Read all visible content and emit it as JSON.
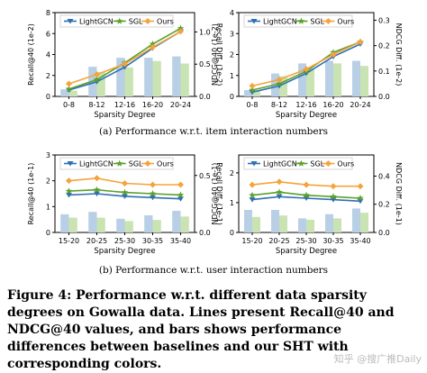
{
  "chart_data": [
    {
      "type": "bar",
      "categories": [
        "0-8",
        "8-12",
        "12-16",
        "16-20",
        "20-24"
      ],
      "xlabel": "Sparsity Degree",
      "ylabel": "Recall@40 (1e-2)",
      "y2label": "Recall Diff. (1e-2)",
      "ylim": [
        0,
        8
      ],
      "y2lim": [
        0,
        1.3
      ],
      "yticks": [
        "0",
        "2",
        "4",
        "6",
        "8"
      ],
      "y2ticks": [
        "0.0",
        "0.5",
        "1.0"
      ],
      "lines": [
        {
          "name": "LightGCN",
          "values": [
            0.6,
            1.4,
            2.8,
            4.6,
            6.2
          ]
        },
        {
          "name": "SGL",
          "values": [
            0.7,
            1.6,
            3.2,
            5.0,
            6.5
          ]
        },
        {
          "name": "Ours",
          "values": [
            1.2,
            2.1,
            3.1,
            4.7,
            6.2
          ]
        }
      ],
      "bars": [
        {
          "name": "Ours vs LightGCN",
          "values": [
            0.11,
            0.46,
            0.6,
            0.6,
            0.62
          ]
        },
        {
          "name": "Ours vs SGL",
          "values": [
            0.09,
            0.38,
            0.45,
            0.55,
            0.51
          ]
        }
      ],
      "legend_position": "top"
    },
    {
      "type": "bar",
      "categories": [
        "0-8",
        "8-12",
        "12-16",
        "16-20",
        "20-24"
      ],
      "xlabel": "Sparsity Degree",
      "ylabel": "NDCG@40 (1e-2)",
      "y2label": "NDCG Diff. (1e-2)",
      "ylim": [
        0,
        4
      ],
      "y2lim": [
        0,
        0.33
      ],
      "yticks": [
        "0",
        "1",
        "2",
        "3",
        "4"
      ],
      "y2ticks": [
        "0.0",
        "0.1",
        "0.2",
        "0.3"
      ],
      "lines": [
        {
          "name": "LightGCN",
          "values": [
            0.2,
            0.5,
            1.1,
            1.9,
            2.5
          ]
        },
        {
          "name": "SGL",
          "values": [
            0.3,
            0.6,
            1.2,
            2.1,
            2.6
          ]
        },
        {
          "name": "Ours",
          "values": [
            0.5,
            0.8,
            1.3,
            2.0,
            2.6
          ]
        }
      ],
      "bars": [
        {
          "name": "Ours vs LightGCN",
          "values": [
            0.025,
            0.09,
            0.13,
            0.14,
            0.14
          ]
        },
        {
          "name": "Ours vs SGL",
          "values": [
            0.02,
            0.08,
            0.11,
            0.13,
            0.12
          ]
        }
      ],
      "legend_position": "top"
    },
    {
      "type": "bar",
      "categories": [
        "15-20",
        "20-25",
        "25-30",
        "30-35",
        "35-40"
      ],
      "xlabel": "Sparsity Degree",
      "ylabel": "Recall@40 (1e-1)",
      "y2label": "Recall Diff. (1e-1)",
      "ylim": [
        0,
        3
      ],
      "y2lim": [
        0,
        0.68
      ],
      "yticks": [
        "0",
        "1",
        "2",
        "3"
      ],
      "y2ticks": [
        "0.0",
        "0.5"
      ],
      "lines": [
        {
          "name": "LightGCN",
          "values": [
            1.45,
            1.5,
            1.4,
            1.35,
            1.3
          ]
        },
        {
          "name": "SGL",
          "values": [
            1.6,
            1.65,
            1.55,
            1.5,
            1.45
          ]
        },
        {
          "name": "Ours",
          "values": [
            2.0,
            2.1,
            1.9,
            1.85,
            1.85
          ]
        }
      ],
      "bars": [
        {
          "name": "Ours vs LightGCN",
          "values": [
            0.16,
            0.18,
            0.12,
            0.15,
            0.19
          ]
        },
        {
          "name": "Ours vs SGL",
          "values": [
            0.13,
            0.13,
            0.1,
            0.11,
            0.14
          ]
        }
      ],
      "legend_position": "top"
    },
    {
      "type": "bar",
      "categories": [
        "15-20",
        "20-25",
        "25-30",
        "30-35",
        "35-40"
      ],
      "xlabel": "Sparsity Degree",
      "ylabel": "NDCG@40 (1e-1)",
      "y2label": "NDCG Diff. (1e-1)",
      "ylim": [
        0,
        2.6
      ],
      "y2lim": [
        0,
        0.55
      ],
      "yticks": [
        "0",
        "1",
        "2"
      ],
      "y2ticks": [
        "0.0",
        "0.2",
        "0.4"
      ],
      "lines": [
        {
          "name": "LightGCN",
          "values": [
            1.1,
            1.2,
            1.15,
            1.1,
            1.05
          ]
        },
        {
          "name": "SGL",
          "values": [
            1.25,
            1.35,
            1.25,
            1.2,
            1.15
          ]
        },
        {
          "name": "Ours",
          "values": [
            1.6,
            1.7,
            1.6,
            1.55,
            1.55
          ]
        }
      ],
      "bars": [
        {
          "name": "Ours vs LightGCN",
          "values": [
            0.16,
            0.16,
            0.1,
            0.13,
            0.17
          ]
        },
        {
          "name": "Ours vs SGL",
          "values": [
            0.11,
            0.12,
            0.09,
            0.1,
            0.14
          ]
        }
      ],
      "legend_position": "top"
    }
  ],
  "legend": {
    "lightgcn": "LightGCN",
    "sgl": "SGL",
    "ours": "Ours"
  },
  "colors": {
    "lightgcn": "#2f6fb3",
    "sgl": "#5aa02c",
    "ours": "#f5a33a",
    "bar_lightgcn": "#b8cfe6",
    "bar_sgl": "#c9e3b3"
  },
  "captions": {
    "sub_a": "(a)  Performance w.r.t. item interaction numbers",
    "sub_b": "(b)  Performance w.r.t. user interaction numbers",
    "figure": "Figure 4: Performance w.r.t. different data sparsity degrees on Gowalla data. Lines present Recall@40 and NDCG@40 values, and bars shows performance differences between baselines and our SHT with corresponding colors."
  },
  "watermark": "知乎 @搜广推Daily"
}
